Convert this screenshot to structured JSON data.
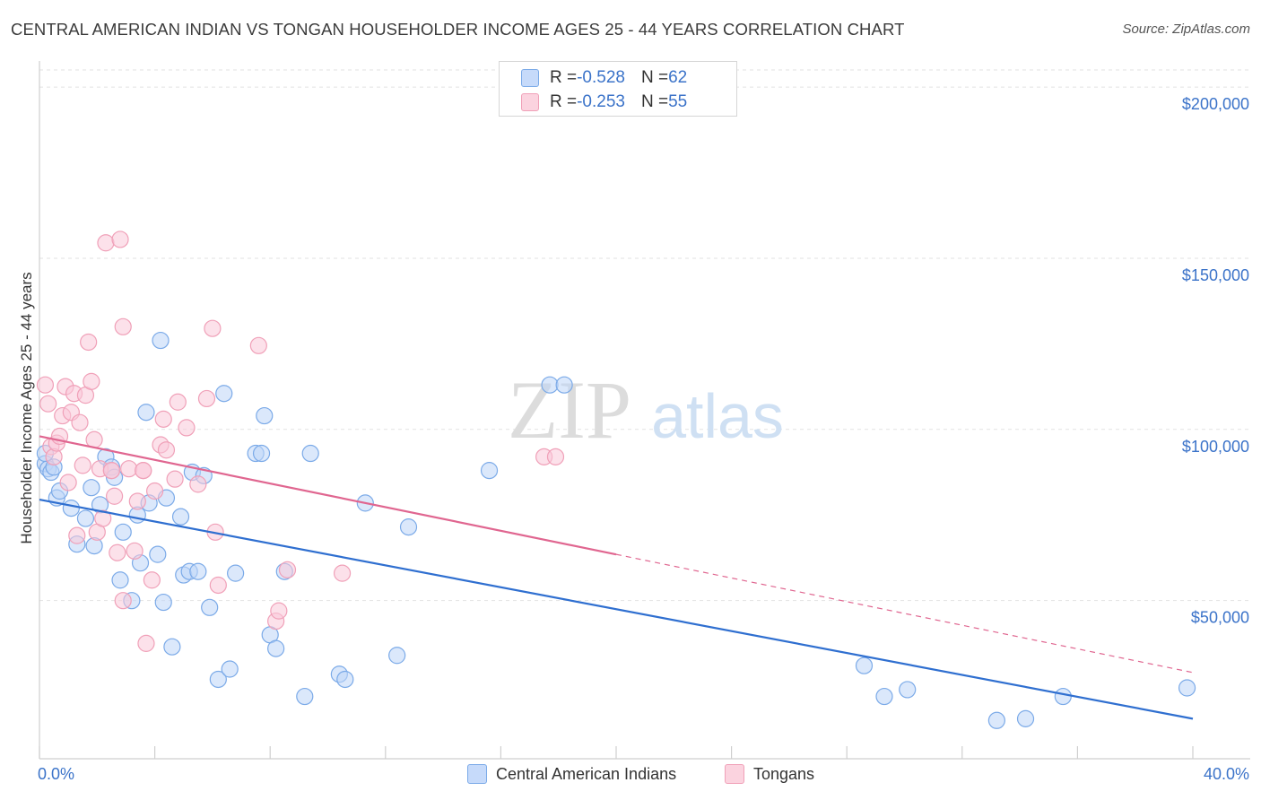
{
  "title": "CENTRAL AMERICAN INDIAN VS TONGAN HOUSEHOLDER INCOME AGES 25 - 44 YEARS CORRELATION CHART",
  "source": "Source: ZipAtlas.com",
  "watermark": {
    "zip": "ZIP",
    "atlas": "atlas"
  },
  "legend_top": [
    {
      "r_label": "R = ",
      "r_value": "-0.528",
      "n_label": "N = ",
      "n_value": "62",
      "color": "#7baae8"
    },
    {
      "r_label": "R = ",
      "r_value": "-0.253",
      "n_label": "N = ",
      "n_value": "55",
      "color": "#f0a0b8"
    }
  ],
  "legend_bottom": [
    "Central American Indians",
    "Tongans"
  ],
  "chart_data": {
    "type": "scatter",
    "title": "CENTRAL AMERICAN INDIAN VS TONGAN HOUSEHOLDER INCOME AGES 25 - 44 YEARS CORRELATION CHART",
    "xlabel": "",
    "ylabel": "Householder Income Ages 25 - 44 years",
    "xlim": [
      0,
      40
    ],
    "ylim": [
      8000,
      205000
    ],
    "x_tick_labels": [
      "0.0%",
      "40.0%"
    ],
    "y_ticks": [
      50000,
      100000,
      150000,
      200000
    ],
    "y_tick_labels": [
      "$50,000",
      "$100,000",
      "$150,000",
      "$200,000"
    ],
    "grid": true,
    "series": [
      {
        "name": "Central American Indians",
        "color": "#7baae8",
        "line_color": "#2f6fd0",
        "trend": {
          "x0": 0,
          "y0": 79500,
          "x1": 40,
          "y1": 15500,
          "dashed_from": null
        },
        "points": [
          [
            0.2,
            90000
          ],
          [
            0.3,
            88500
          ],
          [
            0.4,
            87500
          ],
          [
            0.6,
            80000
          ],
          [
            0.7,
            82000
          ],
          [
            1.1,
            77000
          ],
          [
            1.3,
            66500
          ],
          [
            1.6,
            74000
          ],
          [
            1.8,
            83000
          ],
          [
            1.9,
            66000
          ],
          [
            2.1,
            78000
          ],
          [
            2.3,
            92000
          ],
          [
            2.5,
            89000
          ],
          [
            2.6,
            86000
          ],
          [
            2.9,
            70000
          ],
          [
            2.8,
            56000
          ],
          [
            3.2,
            50000
          ],
          [
            3.4,
            75000
          ],
          [
            3.5,
            61000
          ],
          [
            3.7,
            105000
          ],
          [
            3.8,
            78500
          ],
          [
            4.1,
            63500
          ],
          [
            4.2,
            126000
          ],
          [
            4.3,
            49500
          ],
          [
            4.4,
            80000
          ],
          [
            4.6,
            36500
          ],
          [
            4.9,
            74500
          ],
          [
            5.0,
            57500
          ],
          [
            5.2,
            58500
          ],
          [
            5.3,
            87500
          ],
          [
            5.5,
            58500
          ],
          [
            5.7,
            86500
          ],
          [
            5.9,
            48000
          ],
          [
            6.2,
            27000
          ],
          [
            6.4,
            110500
          ],
          [
            6.6,
            30000
          ],
          [
            6.8,
            58000
          ],
          [
            7.5,
            93000
          ],
          [
            7.7,
            93000
          ],
          [
            7.8,
            104000
          ],
          [
            8.0,
            40000
          ],
          [
            8.2,
            36000
          ],
          [
            8.5,
            58500
          ],
          [
            9.2,
            22000
          ],
          [
            9.4,
            93000
          ],
          [
            10.4,
            28500
          ],
          [
            10.6,
            27000
          ],
          [
            11.3,
            78500
          ],
          [
            12.4,
            34000
          ],
          [
            12.8,
            71500
          ],
          [
            15.6,
            88000
          ],
          [
            17.7,
            113000
          ],
          [
            18.2,
            113000
          ],
          [
            28.6,
            31000
          ],
          [
            29.3,
            22000
          ],
          [
            30.1,
            24000
          ],
          [
            33.2,
            15000
          ],
          [
            34.2,
            15500
          ],
          [
            35.5,
            22000
          ],
          [
            39.8,
            24500
          ],
          [
            0.2,
            93000
          ],
          [
            0.5,
            89000
          ]
        ]
      },
      {
        "name": "Tongans",
        "color": "#f0a0b8",
        "line_color": "#e06690",
        "trend": {
          "x0": 0,
          "y0": 98000,
          "x1": 40,
          "y1": 29000,
          "dashed_from": 20
        },
        "points": [
          [
            0.2,
            113000
          ],
          [
            0.3,
            107500
          ],
          [
            0.4,
            95000
          ],
          [
            0.5,
            92000
          ],
          [
            0.6,
            96000
          ],
          [
            0.7,
            98000
          ],
          [
            0.8,
            104000
          ],
          [
            0.9,
            112500
          ],
          [
            1.0,
            84500
          ],
          [
            1.1,
            105000
          ],
          [
            1.2,
            110500
          ],
          [
            1.4,
            102000
          ],
          [
            1.5,
            89500
          ],
          [
            1.6,
            110000
          ],
          [
            1.7,
            125500
          ],
          [
            1.8,
            114000
          ],
          [
            1.9,
            97000
          ],
          [
            2.0,
            70000
          ],
          [
            2.1,
            88500
          ],
          [
            2.2,
            74000
          ],
          [
            2.3,
            154500
          ],
          [
            2.5,
            88000
          ],
          [
            2.6,
            80500
          ],
          [
            2.7,
            64000
          ],
          [
            2.8,
            155500
          ],
          [
            2.9,
            130000
          ],
          [
            2.9,
            50000
          ],
          [
            3.1,
            88500
          ],
          [
            3.3,
            64500
          ],
          [
            3.4,
            79000
          ],
          [
            3.6,
            88000
          ],
          [
            3.7,
            37500
          ],
          [
            3.9,
            56000
          ],
          [
            4.0,
            82000
          ],
          [
            4.2,
            95500
          ],
          [
            4.3,
            103000
          ],
          [
            4.4,
            94000
          ],
          [
            4.7,
            85500
          ],
          [
            4.8,
            108000
          ],
          [
            5.1,
            100500
          ],
          [
            5.5,
            84000
          ],
          [
            5.8,
            109000
          ],
          [
            6.0,
            129500
          ],
          [
            6.1,
            70000
          ],
          [
            6.2,
            54500
          ],
          [
            7.6,
            124500
          ],
          [
            8.2,
            44000
          ],
          [
            8.3,
            47000
          ],
          [
            8.6,
            59000
          ],
          [
            10.5,
            58000
          ],
          [
            17.5,
            92000
          ],
          [
            17.9,
            92000
          ],
          [
            2.5,
            88000
          ],
          [
            3.6,
            88000
          ],
          [
            1.3,
            69000
          ]
        ]
      }
    ]
  }
}
